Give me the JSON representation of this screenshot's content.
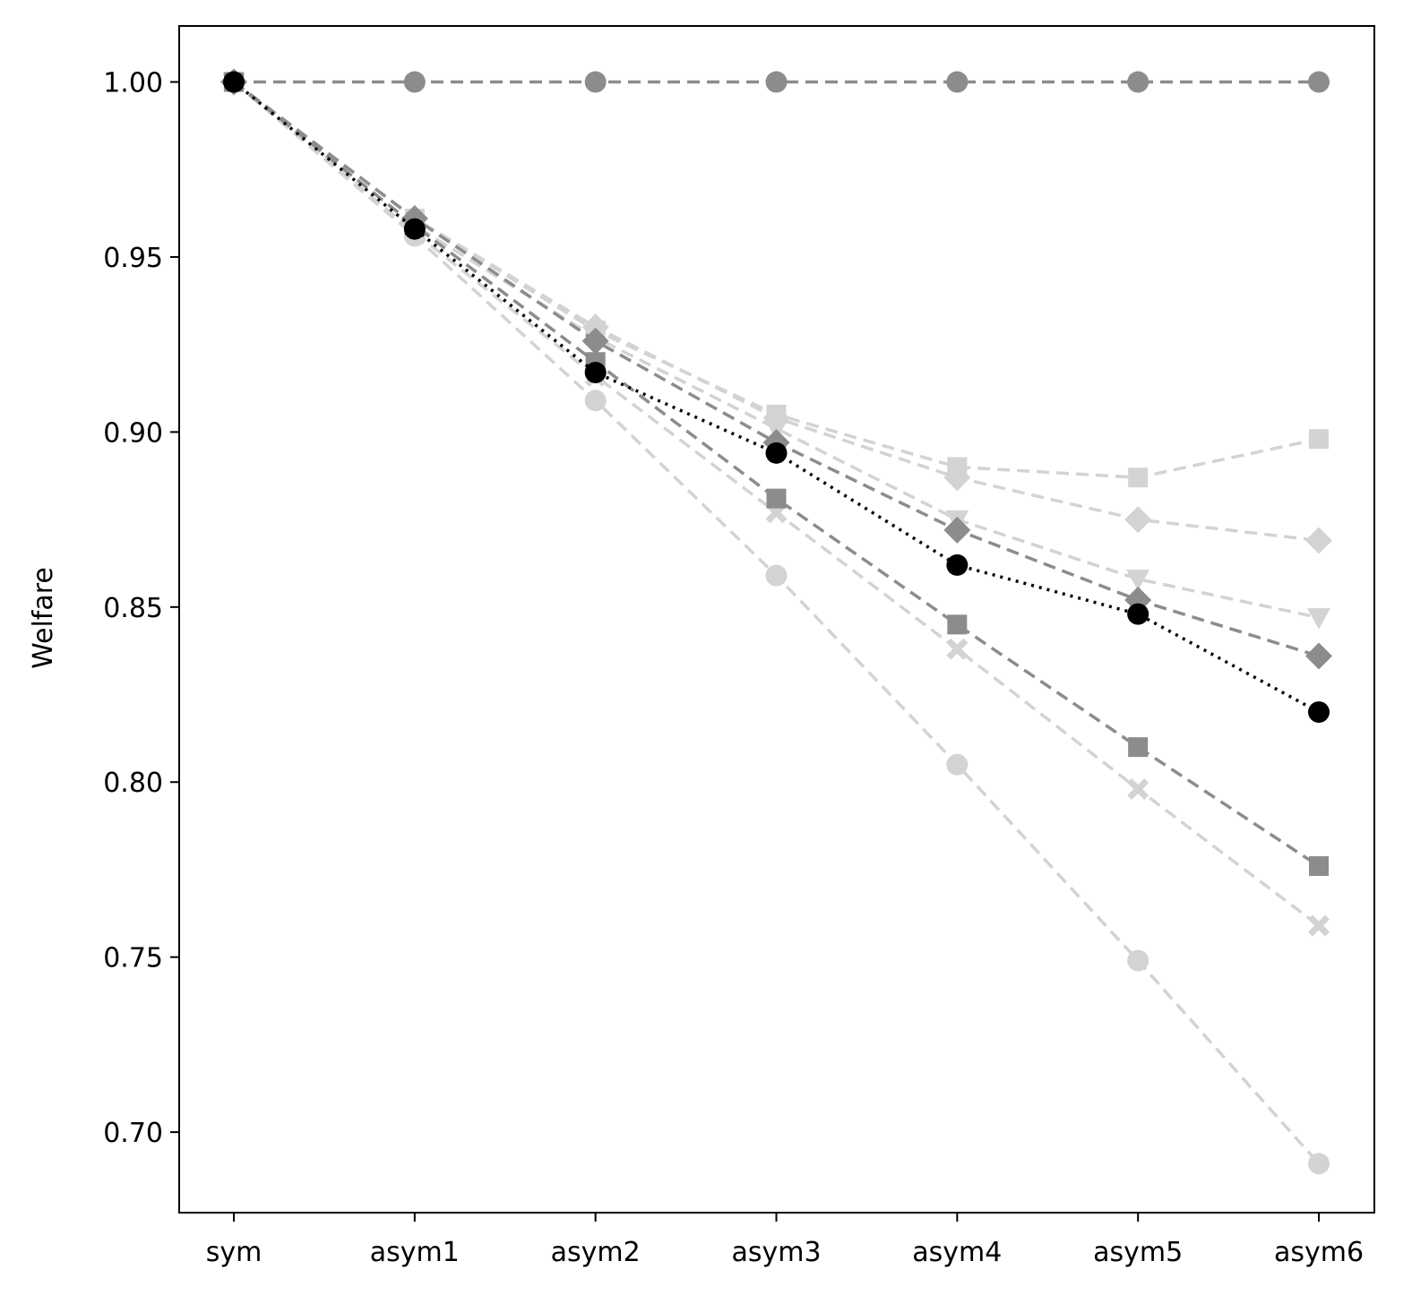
{
  "chart_data": {
    "type": "line",
    "title": "",
    "xlabel": "",
    "ylabel": "Welfare",
    "categories": [
      "sym",
      "asym1",
      "asym2",
      "asym3",
      "asym4",
      "asym5",
      "asym6"
    ],
    "ylim": [
      0.677,
      1.016
    ],
    "yticks": [
      0.7,
      0.75,
      0.8,
      0.85,
      0.9,
      0.95,
      1.0
    ],
    "ytick_labels": [
      "0.70",
      "0.75",
      "0.80",
      "0.85",
      "0.90",
      "0.95",
      "1.00"
    ],
    "grid": false,
    "legend": "none",
    "series": [
      {
        "marker": "circle",
        "color": "#d3d3d3",
        "linestyle": "dashed",
        "values": [
          1.0,
          0.956,
          0.909,
          0.859,
          0.805,
          0.749,
          0.691
        ]
      },
      {
        "marker": "x",
        "color": "#d3d3d3",
        "linestyle": "dashed",
        "values": [
          1.0,
          0.957,
          0.916,
          0.877,
          0.838,
          0.798,
          0.759
        ]
      },
      {
        "marker": "triangle-down",
        "color": "#d3d3d3",
        "linestyle": "dashed",
        "values": [
          1.0,
          0.959,
          0.927,
          0.901,
          0.875,
          0.858,
          0.847
        ]
      },
      {
        "marker": "diamond",
        "color": "#d3d3d3",
        "linestyle": "dashed",
        "values": [
          1.0,
          0.961,
          0.93,
          0.904,
          0.887,
          0.875,
          0.869
        ]
      },
      {
        "marker": "square",
        "color": "#d3d3d3",
        "linestyle": "dashed",
        "values": [
          1.0,
          0.961,
          0.929,
          0.905,
          0.89,
          0.887,
          0.898
        ]
      },
      {
        "marker": "circle",
        "color": "#8c8c8c",
        "linestyle": "dashed",
        "values": [
          1.0,
          1.0,
          1.0,
          1.0,
          1.0,
          1.0,
          1.0
        ]
      },
      {
        "marker": "square",
        "color": "#8c8c8c",
        "linestyle": "dashed",
        "values": [
          1.0,
          0.959,
          0.92,
          0.881,
          0.845,
          0.81,
          0.776
        ]
      },
      {
        "marker": "diamond",
        "color": "#8c8c8c",
        "linestyle": "dashed",
        "values": [
          1.0,
          0.961,
          0.926,
          0.897,
          0.872,
          0.852,
          0.836
        ]
      },
      {
        "marker": "circle",
        "color": "#000000",
        "linestyle": "dotted",
        "values": [
          1.0,
          0.958,
          0.917,
          0.894,
          0.862,
          0.848,
          0.82
        ]
      }
    ]
  }
}
